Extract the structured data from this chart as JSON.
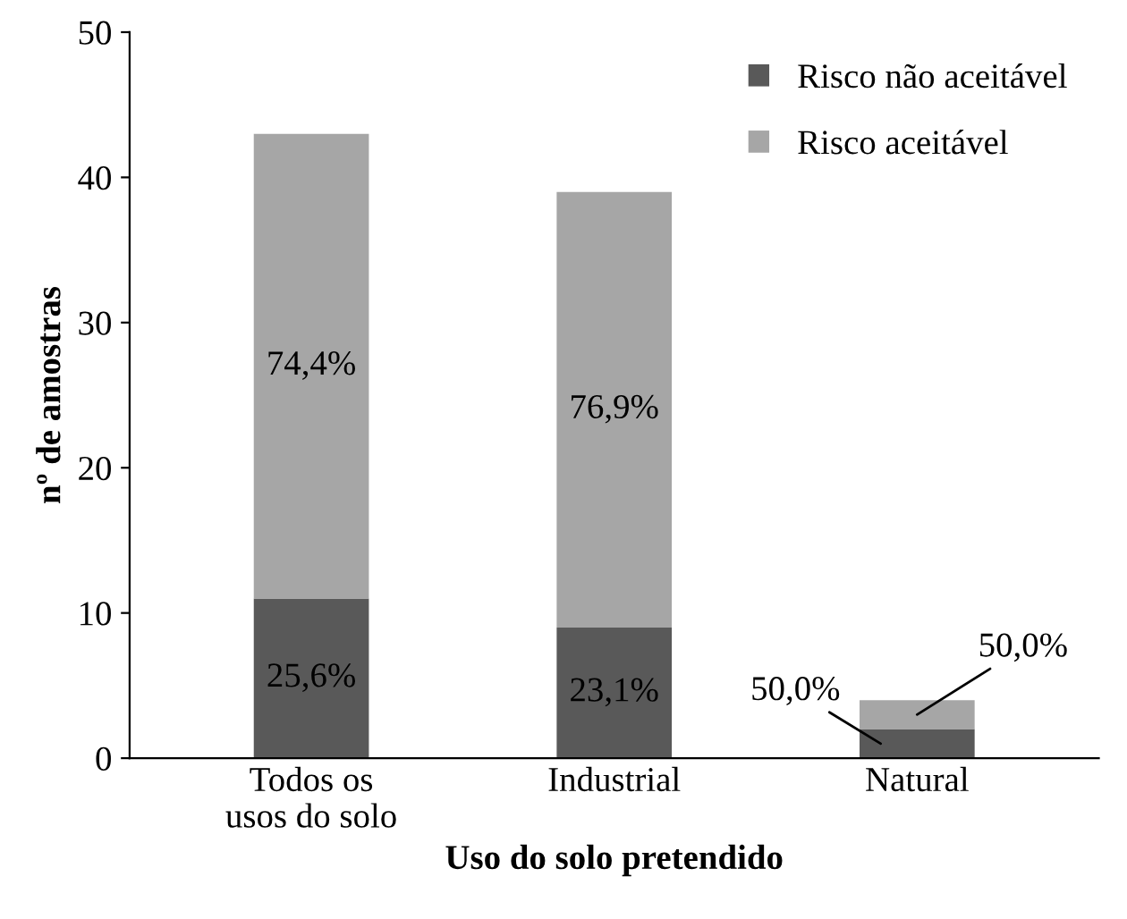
{
  "chart_data": {
    "type": "bar",
    "stacked": true,
    "xlabel": "Uso do solo pretendido",
    "ylabel": "nº de amostras",
    "categories": [
      "Todos os\nusos do solo",
      "Industrial",
      "Natural"
    ],
    "series": [
      {
        "name": "Risco não aceitável",
        "color": "#595959",
        "values": [
          11,
          9,
          2
        ]
      },
      {
        "name": "Risco aceitável",
        "color": "#a6a6a6",
        "values": [
          32,
          30,
          2
        ]
      }
    ],
    "annotations": [
      "25,6%",
      "74,4%",
      "23,1%",
      "76,9%",
      "50,0%",
      "50,0%"
    ],
    "ylim": [
      0,
      50
    ],
    "yticks": [
      0,
      10,
      20,
      30,
      40,
      50
    ],
    "grid": false,
    "legend": "top right"
  }
}
